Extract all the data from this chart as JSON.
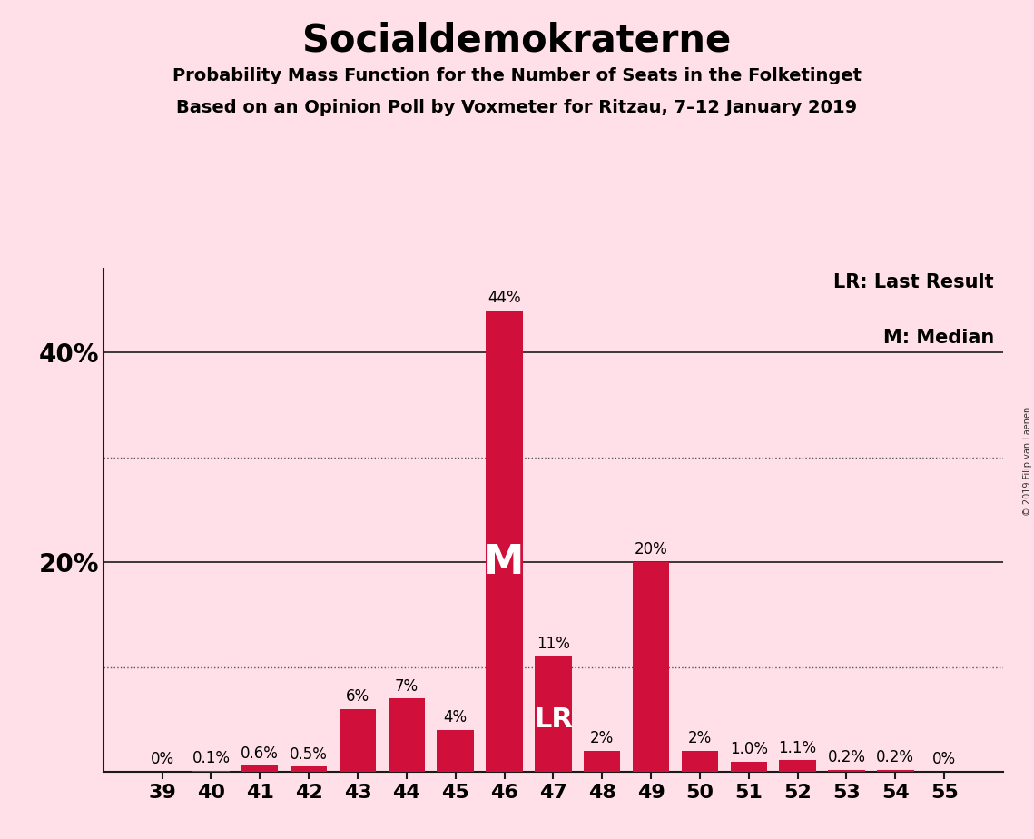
{
  "title": "Socialdemokraterne",
  "subtitle1": "Probability Mass Function for the Number of Seats in the Folketinget",
  "subtitle2": "Based on an Opinion Poll by Voxmeter for Ritzau, 7–12 January 2019",
  "watermark": "© 2019 Filip van Laenen",
  "legend_lr": "LR: Last Result",
  "legend_m": "M: Median",
  "seats": [
    39,
    40,
    41,
    42,
    43,
    44,
    45,
    46,
    47,
    48,
    49,
    50,
    51,
    52,
    53,
    54,
    55
  ],
  "values": [
    0.0,
    0.1,
    0.6,
    0.5,
    6.0,
    7.0,
    4.0,
    44.0,
    11.0,
    2.0,
    20.0,
    2.0,
    1.0,
    1.1,
    0.2,
    0.2,
    0.0
  ],
  "labels": [
    "0%",
    "0.1%",
    "0.6%",
    "0.5%",
    "6%",
    "7%",
    "4%",
    "44%",
    "11%",
    "2%",
    "20%",
    "2%",
    "1.0%",
    "1.1%",
    "0.2%",
    "0.2%",
    "0%"
  ],
  "bar_color": "#D0103A",
  "background_color": "#FFE0E8",
  "median_seat": 46,
  "lr_seat": 47,
  "dotted_lines": [
    10,
    30
  ],
  "solid_lines": [
    20,
    40
  ],
  "ylim": [
    0,
    48
  ],
  "ytick_positions": [
    20,
    40
  ],
  "ytick_labels": [
    "20%",
    "40%"
  ]
}
